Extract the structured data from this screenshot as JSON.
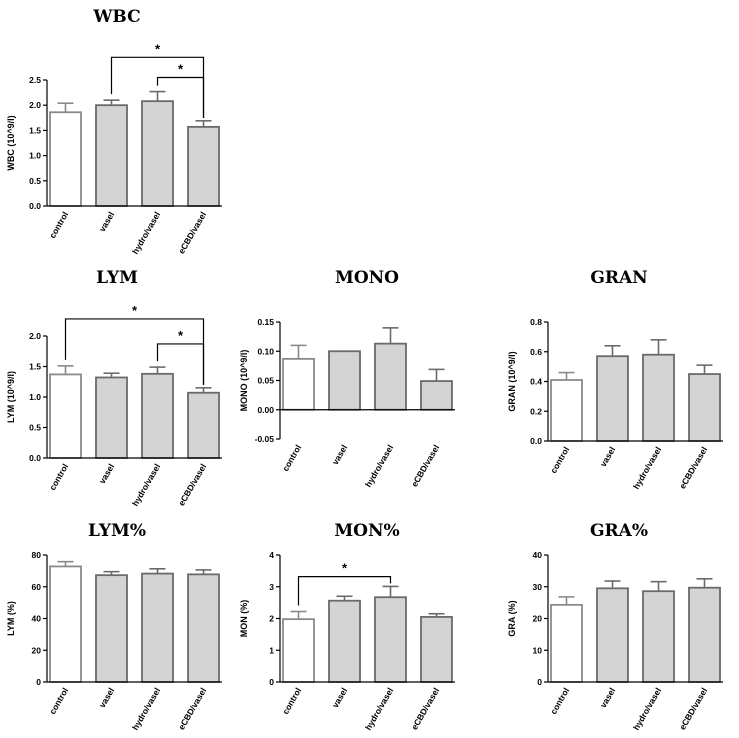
{
  "colors": {
    "control_fill": "#ffffff",
    "control_stroke": "#8a8a8a",
    "treated_fill": "#d4d4d4",
    "treated_stroke": "#6a6a6a",
    "axis": "#000000"
  },
  "chart_data": [
    {
      "id": "wbc",
      "type": "bar",
      "title": "WBC",
      "ylabel": "WBC (10^9/l)",
      "categories": [
        "control",
        "vasel",
        "hydro/vasel",
        "eCBD/vasel"
      ],
      "values": [
        1.86,
        2.0,
        2.08,
        1.57
      ],
      "errors": [
        0.18,
        0.1,
        0.19,
        0.12
      ],
      "ylim": [
        0,
        2.5
      ],
      "yticks": [
        "0.0",
        "0.5",
        "1.0",
        "1.5",
        "2.0",
        "2.5"
      ],
      "yticks_values": [
        0,
        0.5,
        1.0,
        1.5,
        2.0,
        2.5
      ],
      "grid": false,
      "legend": "none",
      "significance": [
        {
          "from": 1,
          "to": 3,
          "label": "*",
          "level": 2.95
        },
        {
          "from": 2,
          "to": 3,
          "label": "*",
          "level": 2.55
        }
      ]
    },
    {
      "id": "lym",
      "type": "bar",
      "title": "LYM",
      "ylabel": "LYM (10^9/l)",
      "categories": [
        "control",
        "vasel",
        "hydro/vasel",
        "eCBD/vasel"
      ],
      "values": [
        1.37,
        1.32,
        1.38,
        1.07
      ],
      "errors": [
        0.14,
        0.07,
        0.11,
        0.08
      ],
      "ylim": [
        0,
        2.0
      ],
      "yticks": [
        "0.0",
        "0.5",
        "1.0",
        "1.5",
        "2.0"
      ],
      "yticks_values": [
        0,
        0.5,
        1.0,
        1.5,
        2.0
      ],
      "grid": false,
      "legend": "none",
      "significance": [
        {
          "from": 0,
          "to": 3,
          "label": "*",
          "level": 2.28
        },
        {
          "from": 2,
          "to": 3,
          "label": "*",
          "level": 1.87
        }
      ]
    },
    {
      "id": "mono",
      "type": "bar",
      "title": "MONO",
      "ylabel": "MONO (10^9/l)",
      "categories": [
        "control",
        "vasel",
        "hydro/vasel",
        "eCBD/vasel"
      ],
      "values": [
        0.087,
        0.1,
        0.113,
        0.049
      ],
      "errors": [
        0.023,
        0.0,
        0.027,
        0.02
      ],
      "ylim": [
        -0.05,
        0.15
      ],
      "yticks": [
        "-0.05",
        "0.00",
        "0.05",
        "0.10",
        "0.15"
      ],
      "yticks_values": [
        -0.05,
        0,
        0.05,
        0.1,
        0.15
      ],
      "grid": false,
      "legend": "none",
      "significance": []
    },
    {
      "id": "gran",
      "type": "bar",
      "title": "GRAN",
      "ylabel": "GRAN (10^9/l)",
      "categories": [
        "control",
        "vasel",
        "hydro/vasel",
        "eCBD/vasel"
      ],
      "values": [
        0.41,
        0.57,
        0.58,
        0.45
      ],
      "errors": [
        0.05,
        0.07,
        0.1,
        0.06
      ],
      "ylim": [
        0,
        0.8
      ],
      "yticks": [
        "0.0",
        "0.2",
        "0.4",
        "0.6",
        "0.8"
      ],
      "yticks_values": [
        0,
        0.2,
        0.4,
        0.6,
        0.8
      ],
      "grid": false,
      "legend": "none",
      "significance": []
    },
    {
      "id": "lympct",
      "type": "bar",
      "title": "LYM%",
      "ylabel": "LYM (%)",
      "categories": [
        "control",
        "vasel",
        "hydro/vasel",
        "eCBD/vasel"
      ],
      "values": [
        72.8,
        67.3,
        68.3,
        67.8
      ],
      "errors": [
        3.0,
        2.2,
        3.0,
        2.8
      ],
      "ylim": [
        0,
        80
      ],
      "yticks": [
        "0",
        "20",
        "40",
        "60",
        "80"
      ],
      "yticks_values": [
        0,
        20,
        40,
        60,
        80
      ],
      "grid": false,
      "legend": "none",
      "significance": []
    },
    {
      "id": "monpct",
      "type": "bar",
      "title": "MON%",
      "ylabel": "MON (%)",
      "categories": [
        "control",
        "vasel",
        "hydro/vasel",
        "eCBD/vasel"
      ],
      "values": [
        1.98,
        2.56,
        2.67,
        2.05
      ],
      "errors": [
        0.24,
        0.14,
        0.34,
        0.1
      ],
      "ylim": [
        0,
        4
      ],
      "yticks": [
        "0",
        "1",
        "2",
        "3",
        "4"
      ],
      "yticks_values": [
        0,
        1,
        2,
        3,
        4
      ],
      "grid": false,
      "legend": "none",
      "significance": [
        {
          "from": 0,
          "to": 2,
          "label": "*",
          "level": 3.32
        }
      ]
    },
    {
      "id": "grapct",
      "type": "bar",
      "title": "GRA%",
      "ylabel": "GRA (%)",
      "categories": [
        "control",
        "vasel",
        "hydro/vasel",
        "eCBD/vasel"
      ],
      "values": [
        24.3,
        29.5,
        28.6,
        29.7
      ],
      "errors": [
        2.5,
        2.3,
        3.0,
        2.8
      ],
      "ylim": [
        0,
        40
      ],
      "yticks": [
        "0",
        "10",
        "20",
        "30",
        "40"
      ],
      "yticks_values": [
        0,
        10,
        20,
        30,
        40
      ],
      "grid": false,
      "legend": "none",
      "significance": []
    }
  ]
}
